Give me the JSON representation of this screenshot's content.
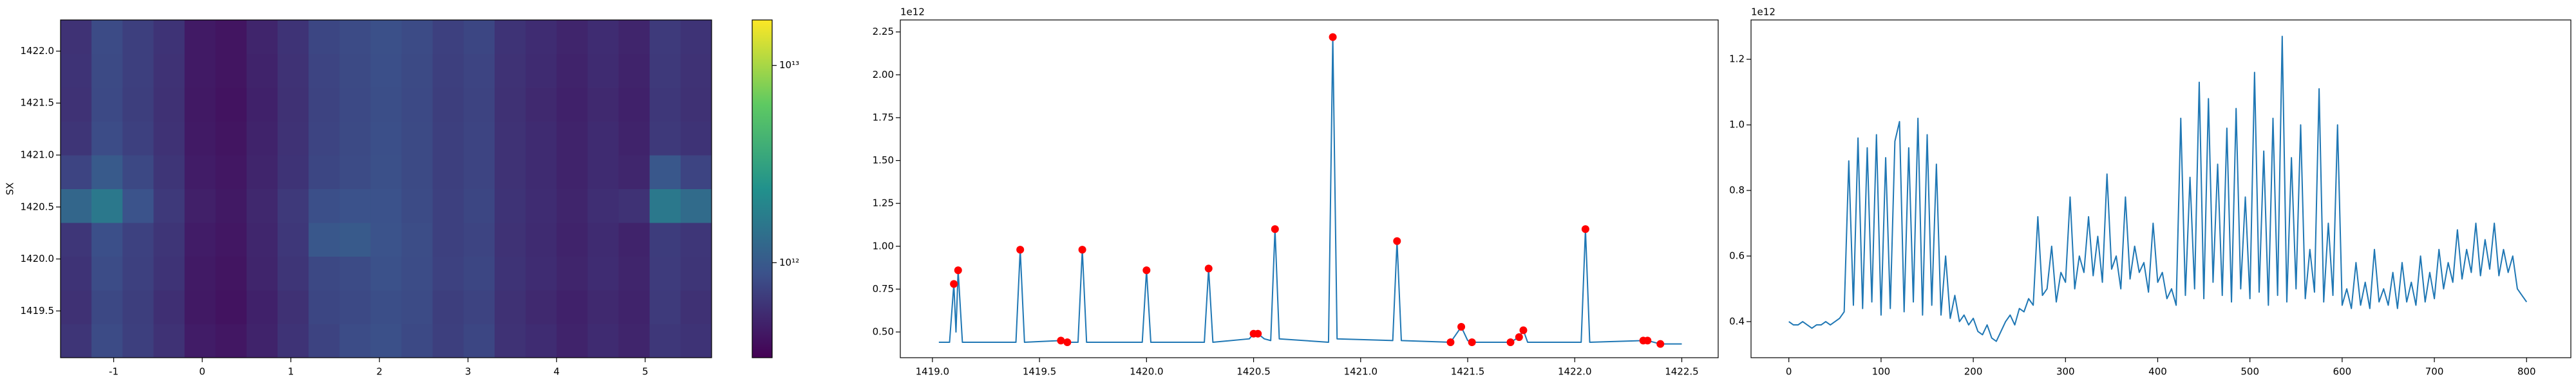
{
  "chart_data": [
    {
      "type": "heatmap",
      "ylabel": "SX",
      "xlim": [
        -1.6,
        5.75
      ],
      "ylim": [
        1419.05,
        1422.3
      ],
      "xticks": [
        -1,
        0,
        1,
        2,
        3,
        4,
        5
      ],
      "yticks": [
        1419.5,
        {
          "value": 1420,
          "label": "1420.0"
        },
        1420.5,
        {
          "value": 1421,
          "label": "1421.0"
        },
        1421.5,
        {
          "value": 1422,
          "label": "1422.0"
        }
      ],
      "colormap": "viridis",
      "log_scale": true,
      "colorbar": {
        "lim": [
          330000000000.0,
          17000000000000.0
        ],
        "ticks": [
          {
            "value": 1000000000000.0,
            "label": "10¹²"
          },
          {
            "value": 10000000000000.0,
            "label": "10¹³"
          }
        ]
      },
      "z": [
        [
          620000000000.0,
          810000000000.0,
          700000000000.0,
          600000000000.0,
          460000000000.0,
          430000000000.0,
          500000000000.0,
          610000000000.0,
          740000000000.0,
          820000000000.0,
          860000000000.0,
          790000000000.0,
          700000000000.0,
          760000000000.0,
          600000000000.0,
          560000000000.0,
          500000000000.0,
          550000000000.0,
          510000000000.0,
          640000000000.0,
          610000000000.0
        ],
        [
          590000000000.0,
          780000000000.0,
          690000000000.0,
          580000000000.0,
          440000000000.0,
          410000000000.0,
          490000000000.0,
          590000000000.0,
          760000000000.0,
          790000000000.0,
          840000000000.0,
          810000000000.0,
          690000000000.0,
          740000000000.0,
          590000000000.0,
          540000000000.0,
          490000000000.0,
          540000000000.0,
          500000000000.0,
          660000000000.0,
          590000000000.0
        ],
        [
          610000000000.0,
          820000000000.0,
          710000000000.0,
          610000000000.0,
          450000000000.0,
          420000000000.0,
          510000000000.0,
          620000000000.0,
          780000000000.0,
          810000000000.0,
          870000000000.0,
          820000000000.0,
          720000000000.0,
          760000000000.0,
          610000000000.0,
          560000000000.0,
          510000000000.0,
          560000000000.0,
          510000000000.0,
          670000000000.0,
          620000000000.0
        ],
        [
          630000000000.0,
          850000000000.0,
          720000000000.0,
          620000000000.0,
          460000000000.0,
          430000000000.0,
          520000000000.0,
          640000000000.0,
          950000000000.0,
          1000000000000.0,
          900000000000.0,
          830000000000.0,
          710000000000.0,
          750000000000.0,
          600000000000.0,
          550000000000.0,
          500000000000.0,
          550000000000.0,
          500000000000.0,
          680000000000.0,
          630000000000.0
        ],
        [
          1200000000000.0,
          1600000000000.0,
          900000000000.0,
          650000000000.0,
          480000000000.0,
          440000000000.0,
          530000000000.0,
          650000000000.0,
          850000000000.0,
          880000000000.0,
          890000000000.0,
          810000000000.0,
          710000000000.0,
          760000000000.0,
          610000000000.0,
          560000000000.0,
          510000000000.0,
          570000000000.0,
          600000000000.0,
          1600000000000.0,
          1300000000000.0
        ],
        [
          750000000000.0,
          1000000000000.0,
          780000000000.0,
          620000000000.0,
          460000000000.0,
          430000000000.0,
          510000000000.0,
          610000000000.0,
          760000000000.0,
          810000000000.0,
          860000000000.0,
          800000000000.0,
          700000000000.0,
          750000000000.0,
          600000000000.0,
          550000000000.0,
          500000000000.0,
          550000000000.0,
          520000000000.0,
          950000000000.0,
          750000000000.0
        ],
        [
          620000000000.0,
          820000000000.0,
          710000000000.0,
          600000000000.0,
          450000000000.0,
          420000000000.0,
          500000000000.0,
          600000000000.0,
          750000000000.0,
          800000000000.0,
          850000000000.0,
          800000000000.0,
          700000000000.0,
          750000000000.0,
          600000000000.0,
          550000000000.0,
          500000000000.0,
          550000000000.0,
          500000000000.0,
          650000000000.0,
          610000000000.0
        ],
        [
          600000000000.0,
          790000000000.0,
          690000000000.0,
          590000000000.0,
          440000000000.0,
          410000000000.0,
          490000000000.0,
          590000000000.0,
          740000000000.0,
          790000000000.0,
          840000000000.0,
          790000000000.0,
          690000000000.0,
          740000000000.0,
          590000000000.0,
          540000000000.0,
          490000000000.0,
          540000000000.0,
          490000000000.0,
          640000000000.0,
          590000000000.0
        ],
        [
          610000000000.0,
          800000000000.0,
          700000000000.0,
          600000000000.0,
          450000000000.0,
          420000000000.0,
          500000000000.0,
          600000000000.0,
          750000000000.0,
          800000000000.0,
          850000000000.0,
          800000000000.0,
          700000000000.0,
          750000000000.0,
          600000000000.0,
          550000000000.0,
          500000000000.0,
          550000000000.0,
          500000000000.0,
          650000000000.0,
          600000000000.0
        ],
        [
          600000000000.0,
          810000000000.0,
          700000000000.0,
          610000000000.0,
          450000000000.0,
          420000000000.0,
          510000000000.0,
          610000000000.0,
          760000000000.0,
          810000000000.0,
          860000000000.0,
          810000000000.0,
          710000000000.0,
          760000000000.0,
          610000000000.0,
          560000000000.0,
          510000000000.0,
          560000000000.0,
          510000000000.0,
          660000000000.0,
          610000000000.0
        ]
      ]
    },
    {
      "type": "line",
      "offset_label": "1e12",
      "xlim": [
        1418.85,
        1422.67
      ],
      "ylim": [
        0.35,
        2.32
      ],
      "xticks": [
        {
          "value": 1419,
          "label": "1419.0"
        },
        1419.5,
        {
          "value": 1420,
          "label": "1420.0"
        },
        1420.5,
        {
          "value": 1421,
          "label": "1421.0"
        },
        1421.5,
        {
          "value": 1422,
          "label": "1422.0"
        },
        1422.5
      ],
      "yticks": [
        {
          "value": 0.5,
          "label": "0.50"
        },
        0.75,
        {
          "value": 1,
          "label": "1.00"
        },
        1.25,
        {
          "value": 1.5,
          "label": "1.50"
        },
        1.75,
        {
          "value": 2,
          "label": "2.00"
        },
        2.25
      ],
      "series": [
        {
          "color": "#1f77b4",
          "marker": "none",
          "x": [
            1419.03,
            1419.08,
            1419.1,
            1419.11,
            1419.12,
            1419.14,
            1419.39,
            1419.41,
            1419.43,
            1419.6,
            1419.63,
            1419.68,
            1419.7,
            1419.72,
            1419.98,
            1420.0,
            1420.02,
            1420.27,
            1420.29,
            1420.31,
            1420.48,
            1420.5,
            1420.52,
            1420.55,
            1420.58,
            1420.6,
            1420.62,
            1420.85,
            1420.87,
            1420.89,
            1421.15,
            1421.17,
            1421.19,
            1421.42,
            1421.47,
            1421.5,
            1421.52,
            1421.7,
            1421.74,
            1421.76,
            1421.78,
            1422.03,
            1422.05,
            1422.07,
            1422.32,
            1422.34,
            1422.4,
            1422.5
          ],
          "values": [
            0.44,
            0.44,
            0.78,
            0.5,
            0.86,
            0.44,
            0.44,
            0.98,
            0.44,
            0.45,
            0.44,
            0.44,
            0.98,
            0.44,
            0.44,
            0.86,
            0.44,
            0.44,
            0.87,
            0.44,
            0.46,
            0.49,
            0.49,
            0.46,
            0.45,
            1.1,
            0.46,
            0.44,
            2.22,
            0.46,
            0.45,
            1.03,
            0.45,
            0.44,
            0.53,
            0.45,
            0.44,
            0.44,
            0.47,
            0.51,
            0.44,
            0.44,
            1.1,
            0.44,
            0.45,
            0.45,
            0.43,
            0.43
          ]
        },
        {
          "color": "#ff0000",
          "marker": "o",
          "x": [
            1419.1,
            1419.12,
            1419.41,
            1419.6,
            1419.63,
            1419.7,
            1420.0,
            1420.29,
            1420.5,
            1420.52,
            1420.6,
            1420.87,
            1421.17,
            1421.42,
            1421.47,
            1421.52,
            1421.7,
            1421.74,
            1421.76,
            1422.05,
            1422.32,
            1422.34,
            1422.4
          ],
          "values": [
            0.78,
            0.86,
            0.98,
            0.45,
            0.44,
            0.98,
            0.86,
            0.87,
            0.49,
            0.49,
            1.1,
            2.22,
            1.03,
            0.44,
            0.53,
            0.44,
            0.44,
            0.47,
            0.51,
            1.1,
            0.45,
            0.45,
            0.43
          ]
        }
      ]
    },
    {
      "type": "line",
      "offset_label": "1e12",
      "xlim": [
        -41,
        848
      ],
      "ylim": [
        0.29,
        1.32
      ],
      "xticks": [
        0,
        100,
        200,
        300,
        400,
        500,
        600,
        700,
        800
      ],
      "yticks": [
        0.4,
        0.6,
        0.8,
        {
          "value": 1,
          "label": "1.0"
        },
        1.2
      ],
      "series": [
        {
          "color": "#1f77b4",
          "marker": "none",
          "x": [
            0,
            5,
            10,
            15,
            20,
            25,
            30,
            35,
            40,
            45,
            50,
            55,
            60,
            65,
            70,
            75,
            80,
            85,
            90,
            95,
            100,
            105,
            110,
            115,
            120,
            125,
            130,
            135,
            140,
            145,
            150,
            155,
            160,
            165,
            170,
            175,
            180,
            185,
            190,
            195,
            200,
            205,
            210,
            215,
            220,
            225,
            230,
            235,
            240,
            245,
            250,
            255,
            260,
            265,
            270,
            275,
            280,
            285,
            290,
            295,
            300,
            305,
            310,
            315,
            320,
            325,
            330,
            335,
            340,
            345,
            350,
            355,
            360,
            365,
            370,
            375,
            380,
            385,
            390,
            395,
            400,
            405,
            410,
            415,
            420,
            425,
            430,
            435,
            440,
            445,
            450,
            455,
            460,
            465,
            470,
            475,
            480,
            485,
            490,
            495,
            500,
            505,
            510,
            515,
            520,
            525,
            530,
            535,
            540,
            545,
            550,
            555,
            560,
            565,
            570,
            575,
            580,
            585,
            590,
            595,
            600,
            605,
            610,
            615,
            620,
            625,
            630,
            635,
            640,
            645,
            650,
            655,
            660,
            665,
            670,
            675,
            680,
            685,
            690,
            695,
            700,
            705,
            710,
            715,
            720,
            725,
            730,
            735,
            740,
            745,
            750,
            755,
            760,
            765,
            770,
            775,
            780,
            785,
            790,
            795,
            800
          ],
          "values": [
            0.4,
            0.39,
            0.39,
            0.4,
            0.39,
            0.38,
            0.39,
            0.39,
            0.4,
            0.39,
            0.4,
            0.41,
            0.43,
            0.89,
            0.45,
            0.96,
            0.44,
            0.93,
            0.46,
            0.97,
            0.42,
            0.9,
            0.44,
            0.95,
            1.01,
            0.43,
            0.93,
            0.46,
            1.02,
            0.42,
            0.97,
            0.45,
            0.88,
            0.42,
            0.6,
            0.41,
            0.48,
            0.4,
            0.42,
            0.39,
            0.41,
            0.37,
            0.36,
            0.39,
            0.35,
            0.34,
            0.37,
            0.4,
            0.42,
            0.39,
            0.44,
            0.43,
            0.47,
            0.45,
            0.72,
            0.48,
            0.5,
            0.63,
            0.46,
            0.55,
            0.52,
            0.78,
            0.5,
            0.6,
            0.55,
            0.72,
            0.54,
            0.66,
            0.52,
            0.85,
            0.56,
            0.6,
            0.5,
            0.78,
            0.53,
            0.63,
            0.55,
            0.58,
            0.49,
            0.7,
            0.52,
            0.55,
            0.47,
            0.5,
            0.45,
            1.02,
            0.48,
            0.84,
            0.5,
            1.13,
            0.47,
            1.08,
            0.52,
            0.88,
            0.48,
            0.99,
            0.46,
            1.05,
            0.5,
            0.78,
            0.47,
            1.16,
            0.49,
            0.92,
            0.45,
            1.02,
            0.48,
            1.27,
            0.46,
            0.9,
            0.5,
            1.0,
            0.47,
            0.62,
            0.49,
            1.11,
            0.46,
            0.7,
            0.48,
            1.0,
            0.45,
            0.5,
            0.44,
            0.58,
            0.45,
            0.52,
            0.44,
            0.62,
            0.46,
            0.5,
            0.45,
            0.55,
            0.44,
            0.58,
            0.46,
            0.52,
            0.45,
            0.6,
            0.46,
            0.55,
            0.47,
            0.62,
            0.5,
            0.58,
            0.52,
            0.68,
            0.53,
            0.62,
            0.55,
            0.7,
            0.54,
            0.65,
            0.56,
            0.7,
            0.54,
            0.62,
            0.55,
            0.6,
            0.5,
            0.48,
            0.46
          ]
        }
      ]
    }
  ]
}
